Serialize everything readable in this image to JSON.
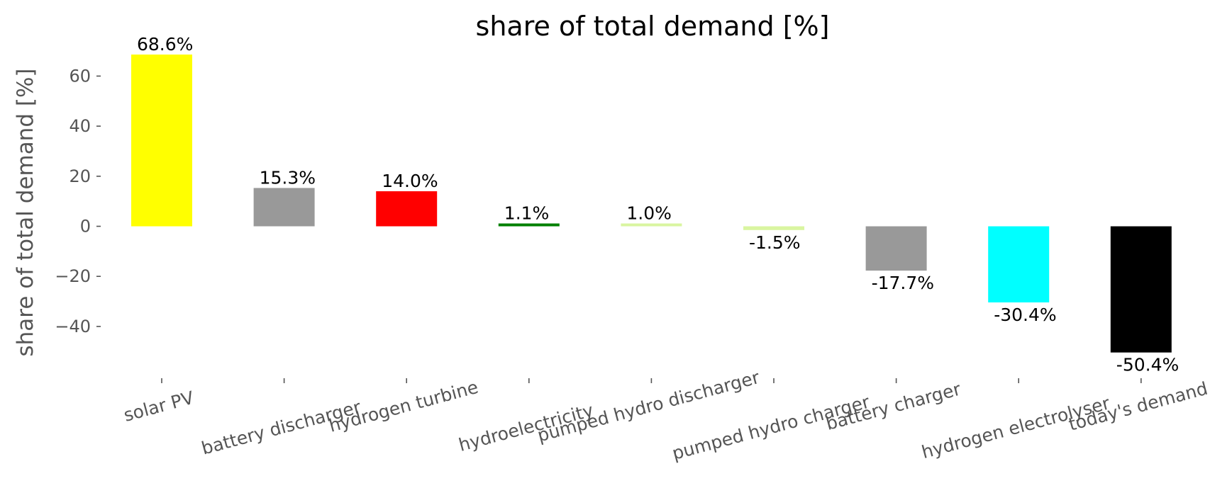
{
  "chart_data": {
    "type": "bar",
    "title": "share of total demand [%]",
    "xlabel": "",
    "ylabel": "share of total demand [%]",
    "ylim": [
      -57,
      72
    ],
    "yticks": [
      -40,
      -20,
      0,
      20,
      40,
      60
    ],
    "ytick_labels": [
      "−40",
      "−20",
      "0",
      "20",
      "40",
      "60"
    ],
    "grid": false,
    "legend": "none",
    "categories": [
      "solar PV",
      "battery discharger",
      "hydrogen turbine",
      "hydroelectricity",
      "pumped hydro discharger",
      "pumped hydro charger",
      "battery charger",
      "hydrogen electrolyser",
      "today's demand"
    ],
    "values": [
      68.6,
      15.3,
      14.0,
      1.1,
      1.0,
      -1.5,
      -17.7,
      -30.4,
      -50.4
    ],
    "labels": [
      "68.6%",
      "15.3%",
      "14.0%",
      "1.1%",
      "1.0%",
      "-1.5%",
      "-17.7%",
      "-30.4%",
      "-50.4%"
    ],
    "colors": [
      "#ffff00",
      "#999999",
      "#ff0000",
      "#008000",
      "#d9f5a0",
      "#d9f5a0",
      "#999999",
      "#00ffff",
      "#000000"
    ]
  }
}
